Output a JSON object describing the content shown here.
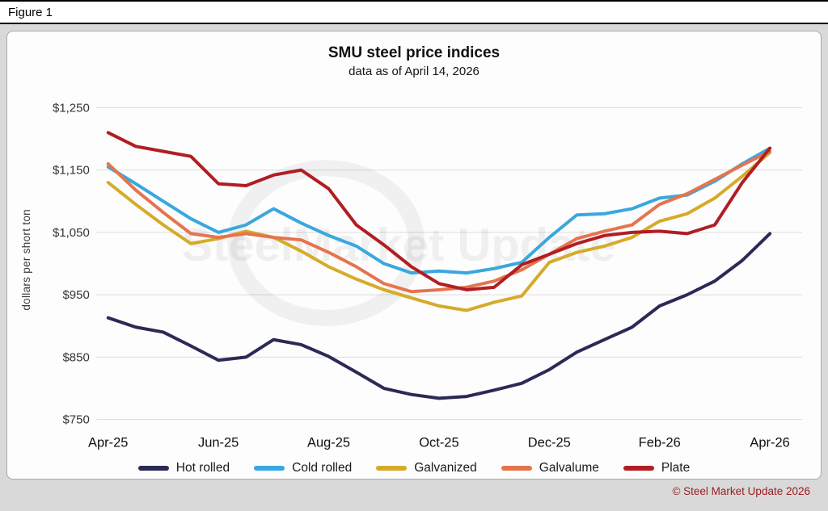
{
  "figure_label": "Figure 1",
  "watermark": "SteelMarket Update",
  "copyright": "© Steel Market Update 2026",
  "colors": {
    "copyright_text": "#9b1b1e",
    "page_background": "#d9d9d9",
    "panel_background": "#fdfdfd",
    "gridline": "#dcdcdc"
  },
  "chart_data": {
    "type": "line",
    "title": "SMU steel price indices",
    "subtitle": "data as of April 14, 2026",
    "xlabel": "",
    "ylabel": "dollars per short ton",
    "ylim": [
      750,
      1250
    ],
    "yticks": [
      750,
      850,
      950,
      1050,
      1150,
      1250
    ],
    "ytick_labels": [
      "$750",
      "$850",
      "$950",
      "$1,050",
      "$1,150",
      "$1,250"
    ],
    "x_months_span": [
      0,
      12
    ],
    "x_step_months": 0.5,
    "xticks": [
      0,
      2,
      4,
      6,
      8,
      10,
      12
    ],
    "xtick_labels": [
      "Apr-25",
      "Jun-25",
      "Aug-25",
      "Oct-25",
      "Dec-25",
      "Feb-26",
      "Apr-26"
    ],
    "grid": "horizontal",
    "legend_position": "bottom",
    "series": [
      {
        "name": "Hot rolled",
        "color": "#2b2a56",
        "values": [
          913,
          898,
          890,
          868,
          845,
          850,
          878,
          870,
          851,
          826,
          800,
          790,
          784,
          787,
          797,
          808,
          830,
          858,
          878,
          898,
          932,
          950,
          972,
          1005,
          1048
        ]
      },
      {
        "name": "Cold rolled",
        "color": "#3aa7de",
        "values": [
          1155,
          1128,
          1100,
          1072,
          1050,
          1062,
          1088,
          1065,
          1045,
          1028,
          1000,
          985,
          988,
          985,
          992,
          1002,
          1042,
          1078,
          1080,
          1088,
          1105,
          1110,
          1132,
          1160,
          1185
        ]
      },
      {
        "name": "Galvanized",
        "color": "#d5ab2a",
        "values": [
          1130,
          1095,
          1062,
          1032,
          1040,
          1052,
          1042,
          1020,
          995,
          975,
          958,
          945,
          932,
          925,
          938,
          948,
          1002,
          1018,
          1028,
          1042,
          1068,
          1080,
          1105,
          1140,
          1178
        ]
      },
      {
        "name": "Galvalume",
        "color": "#e5744e",
        "values": [
          1160,
          1118,
          1082,
          1048,
          1042,
          1048,
          1042,
          1038,
          1018,
          995,
          968,
          955,
          958,
          962,
          972,
          990,
          1015,
          1040,
          1052,
          1062,
          1095,
          1112,
          1135,
          1158,
          1180
        ]
      },
      {
        "name": "Plate",
        "color": "#b01e23",
        "values": [
          1210,
          1188,
          1180,
          1172,
          1128,
          1125,
          1142,
          1150,
          1120,
          1062,
          1030,
          995,
          968,
          958,
          962,
          998,
          1015,
          1032,
          1045,
          1050,
          1052,
          1048,
          1062,
          1130,
          1185
        ]
      }
    ]
  }
}
